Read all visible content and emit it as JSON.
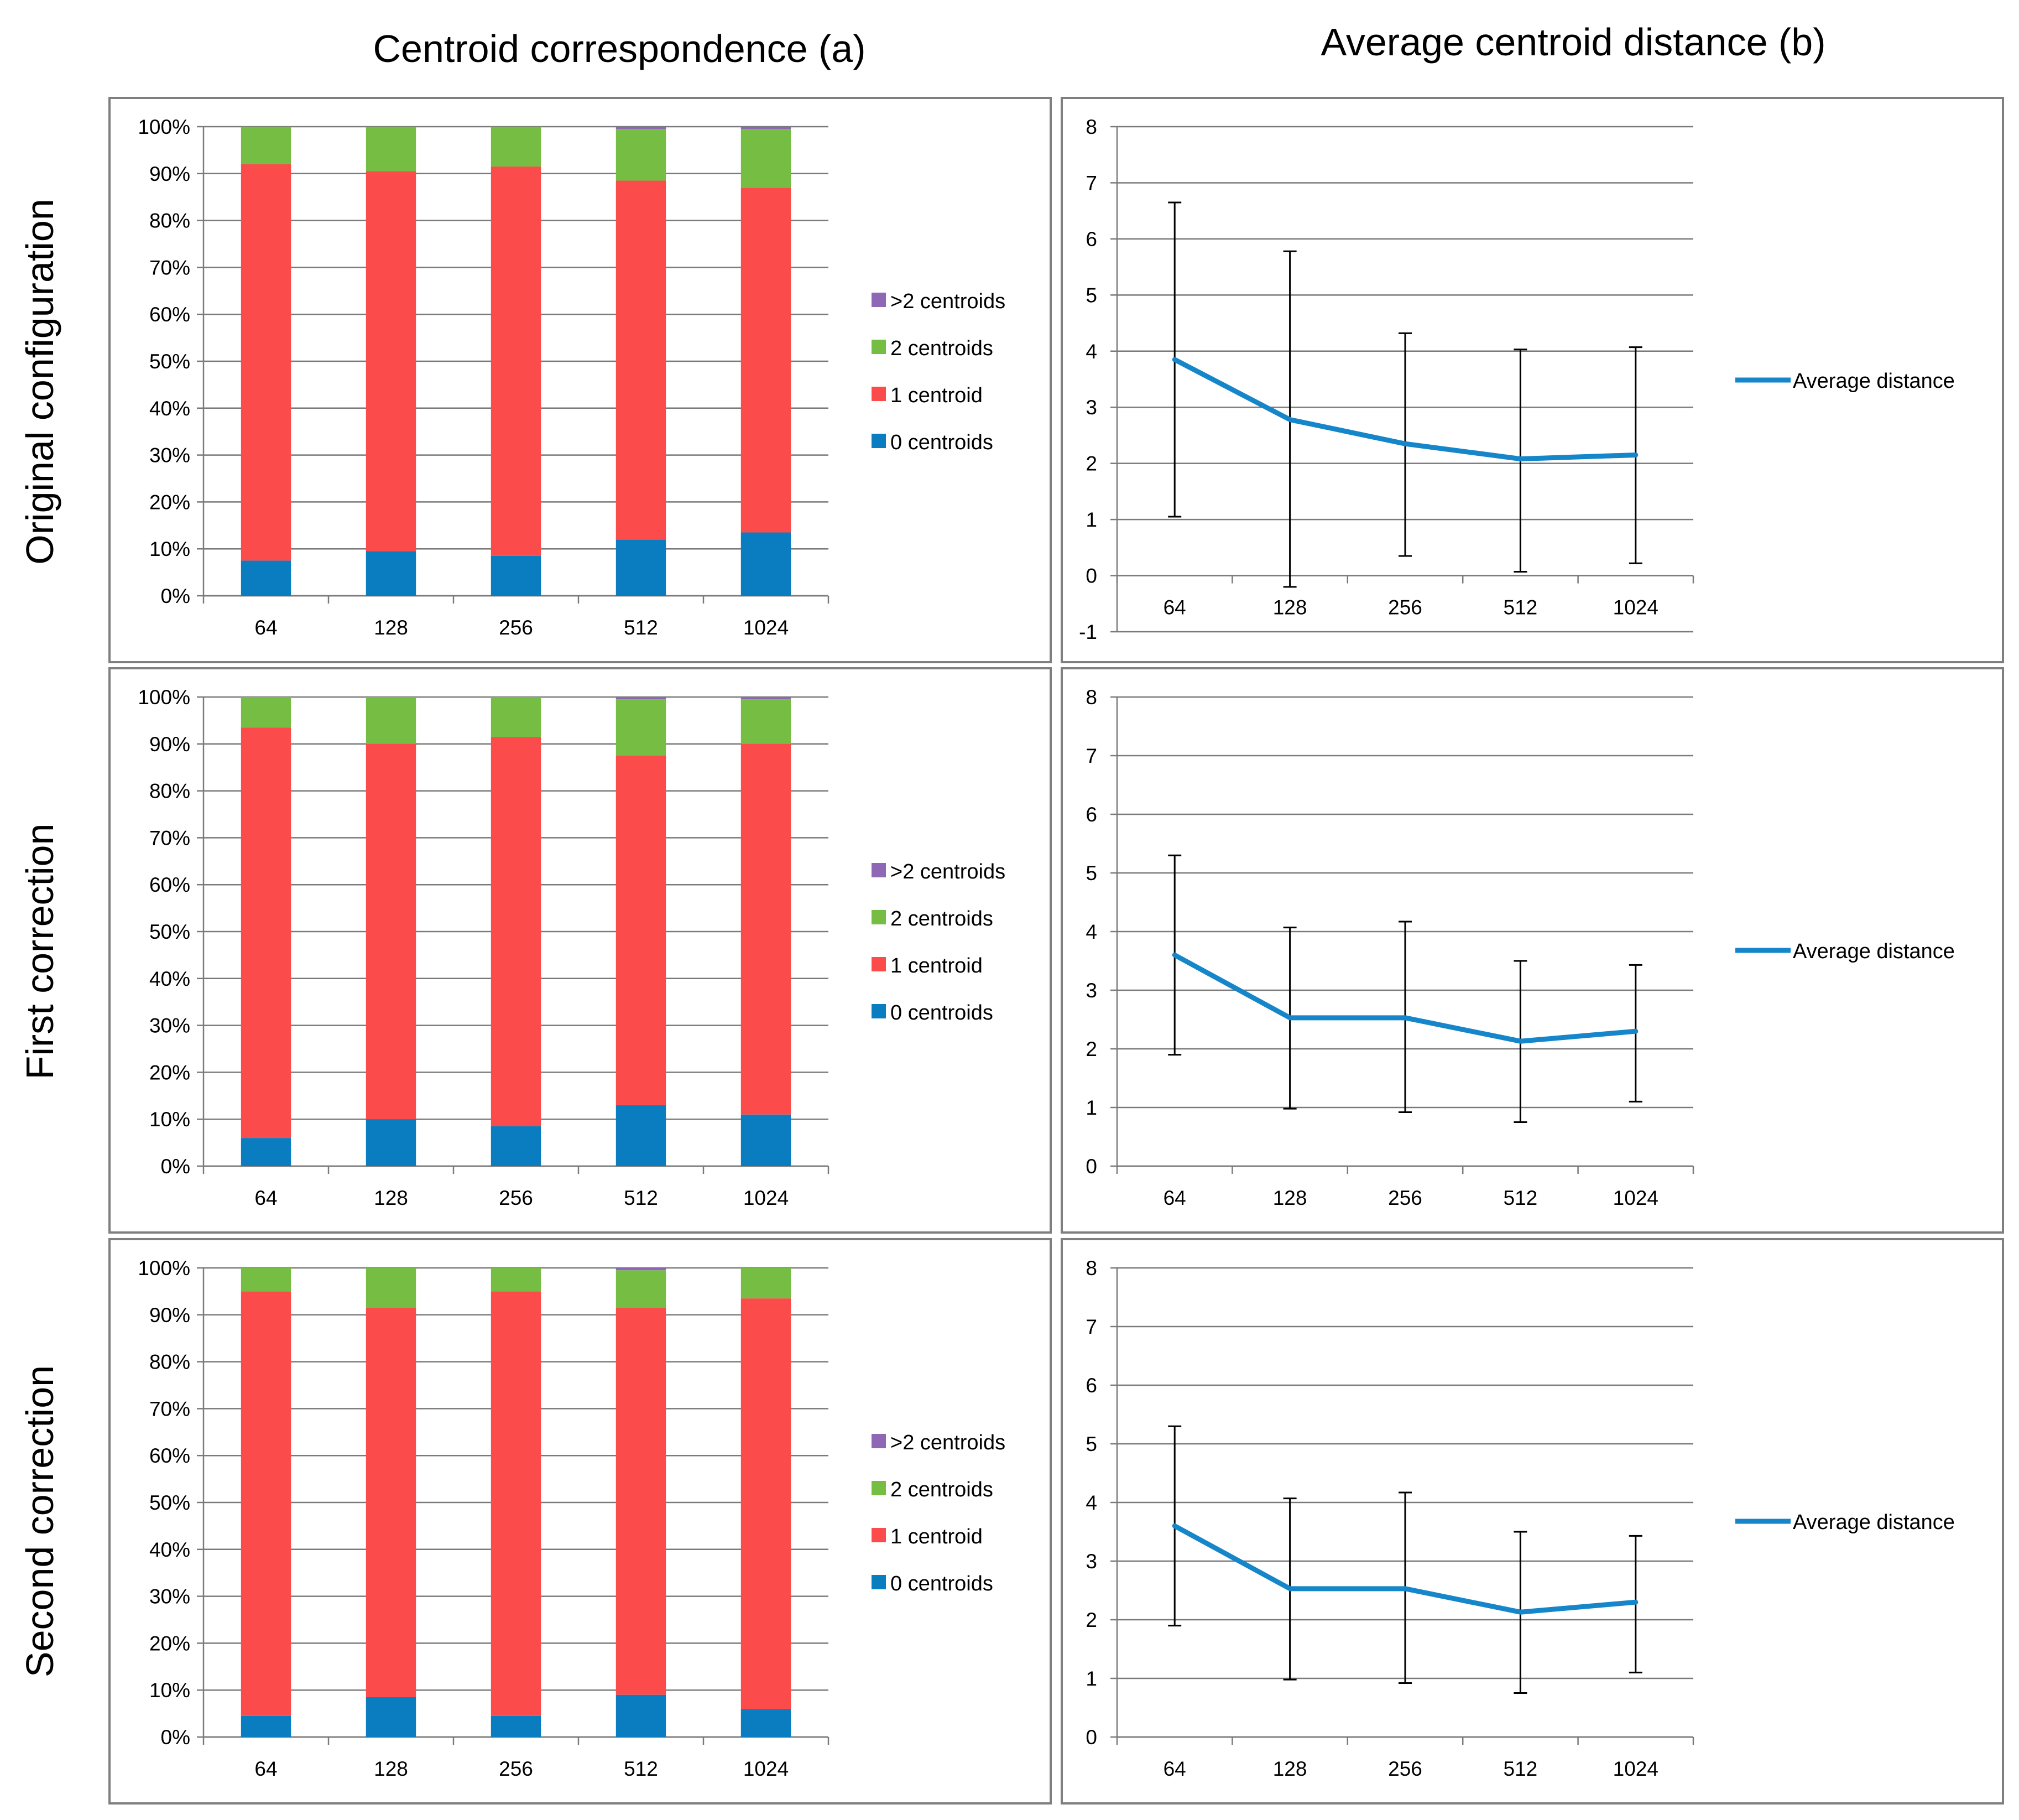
{
  "column_titles": [
    "Centroid correspondence (a)",
    "Average centroid distance (b)"
  ],
  "row_titles": [
    "Original configuration",
    "First correction",
    "Second correction"
  ],
  "colors": {
    "gt2": "#8e68b4",
    "c2": "#76bd43",
    "c1": "#fb4b4b",
    "c0": "#0a7dc1",
    "line": "#1586c9",
    "grid": "#7a7a7a",
    "axis": "#7a7a7a",
    "frame": "#7f7f7f",
    "text": "#000000"
  },
  "chart_data": [
    {
      "type": "bar",
      "stacked": true,
      "row": 0,
      "col": 0,
      "title": "Centroid correspondence (a)",
      "row_label": "Original configuration",
      "categories": [
        "64",
        "128",
        "256",
        "512",
        "1024"
      ],
      "yticks": [
        "0%",
        "10%",
        "20%",
        "30%",
        "40%",
        "50%",
        "60%",
        "70%",
        "80%",
        "90%",
        "100%"
      ],
      "ylim": [
        0,
        100
      ],
      "legend_position": "right",
      "series": [
        {
          "name": "0 centroids",
          "color_key": "c0",
          "values": [
            7.5,
            9.5,
            8.5,
            12,
            13.5
          ]
        },
        {
          "name": "1 centroid",
          "color_key": "c1",
          "values": [
            84.5,
            81,
            83,
            76.5,
            73.5
          ]
        },
        {
          "name": "2 centroids",
          "color_key": "c2",
          "values": [
            8,
            9.5,
            8.5,
            11,
            12.5
          ]
        },
        {
          "name": ">2 centroids",
          "color_key": "gt2",
          "values": [
            0,
            0,
            0,
            0.5,
            0.5
          ]
        }
      ]
    },
    {
      "type": "line",
      "row": 0,
      "col": 1,
      "title": "Average centroid distance (b)",
      "row_label": "Original configuration",
      "categories": [
        "64",
        "128",
        "256",
        "512",
        "1024"
      ],
      "yticks": [
        "-1",
        "0",
        "1",
        "2",
        "3",
        "4",
        "5",
        "6",
        "7",
        "8"
      ],
      "ylim": [
        -1,
        8
      ],
      "legend_position": "right",
      "series": [
        {
          "name": "Average distance",
          "color_key": "line",
          "values": [
            3.85,
            2.78,
            2.35,
            2.08,
            2.15
          ],
          "err_low": [
            1.05,
            -0.2,
            0.35,
            0.07,
            0.22
          ],
          "err_high": [
            6.65,
            5.78,
            4.32,
            4.03,
            4.07
          ]
        }
      ]
    },
    {
      "type": "bar",
      "stacked": true,
      "row": 1,
      "col": 0,
      "title": "Centroid correspondence (a)",
      "row_label": "First correction",
      "categories": [
        "64",
        "128",
        "256",
        "512",
        "1024"
      ],
      "yticks": [
        "0%",
        "10%",
        "20%",
        "30%",
        "40%",
        "50%",
        "60%",
        "70%",
        "80%",
        "90%",
        "100%"
      ],
      "ylim": [
        0,
        100
      ],
      "legend_position": "right",
      "series": [
        {
          "name": "0 centroids",
          "color_key": "c0",
          "values": [
            6,
            10,
            8.5,
            13,
            11
          ]
        },
        {
          "name": "1 centroid",
          "color_key": "c1",
          "values": [
            87.5,
            80,
            83,
            74.5,
            79
          ]
        },
        {
          "name": "2 centroids",
          "color_key": "c2",
          "values": [
            6.5,
            10,
            8.5,
            12,
            9.5
          ]
        },
        {
          "name": ">2 centroids",
          "color_key": "gt2",
          "values": [
            0,
            0,
            0,
            0.5,
            0.5
          ]
        }
      ]
    },
    {
      "type": "line",
      "row": 1,
      "col": 1,
      "title": "Average centroid distance (b)",
      "row_label": "First correction",
      "categories": [
        "64",
        "128",
        "256",
        "512",
        "1024"
      ],
      "yticks": [
        "0",
        "1",
        "2",
        "3",
        "4",
        "5",
        "6",
        "7",
        "8"
      ],
      "ylim": [
        0,
        8
      ],
      "legend_position": "right",
      "series": [
        {
          "name": "Average distance",
          "color_key": "line",
          "values": [
            3.6,
            2.53,
            2.53,
            2.13,
            2.3
          ],
          "err_low": [
            1.9,
            0.98,
            0.92,
            0.75,
            1.1
          ],
          "err_high": [
            5.3,
            4.07,
            4.17,
            3.5,
            3.43
          ]
        }
      ]
    },
    {
      "type": "bar",
      "stacked": true,
      "row": 2,
      "col": 0,
      "title": "Centroid correspondence (a)",
      "row_label": "Second correction",
      "categories": [
        "64",
        "128",
        "256",
        "512",
        "1024"
      ],
      "yticks": [
        "0%",
        "10%",
        "20%",
        "30%",
        "40%",
        "50%",
        "60%",
        "70%",
        "80%",
        "90%",
        "100%"
      ],
      "ylim": [
        0,
        100
      ],
      "legend_position": "right",
      "series": [
        {
          "name": "0 centroids",
          "color_key": "c0",
          "values": [
            4.5,
            8.5,
            4.5,
            9,
            6
          ]
        },
        {
          "name": "1 centroid",
          "color_key": "c1",
          "values": [
            90.5,
            83,
            90.5,
            82.5,
            87.5
          ]
        },
        {
          "name": "2 centroids",
          "color_key": "c2",
          "values": [
            5,
            8.5,
            5,
            8,
            6.5
          ]
        },
        {
          "name": ">2 centroids",
          "color_key": "gt2",
          "values": [
            0,
            0,
            0,
            0.5,
            0
          ]
        }
      ]
    },
    {
      "type": "line",
      "row": 2,
      "col": 1,
      "title": "Average centroid distance (b)",
      "row_label": "Second correction",
      "categories": [
        "64",
        "128",
        "256",
        "512",
        "1024"
      ],
      "yticks": [
        "0",
        "1",
        "2",
        "3",
        "4",
        "5",
        "6",
        "7",
        "8"
      ],
      "ylim": [
        0,
        8
      ],
      "legend_position": "right",
      "series": [
        {
          "name": "Average distance",
          "color_key": "line",
          "values": [
            3.6,
            2.53,
            2.53,
            2.13,
            2.3
          ],
          "err_low": [
            1.9,
            0.98,
            0.92,
            0.75,
            1.1
          ],
          "err_high": [
            5.3,
            4.07,
            4.17,
            3.5,
            3.43
          ]
        }
      ]
    }
  ]
}
